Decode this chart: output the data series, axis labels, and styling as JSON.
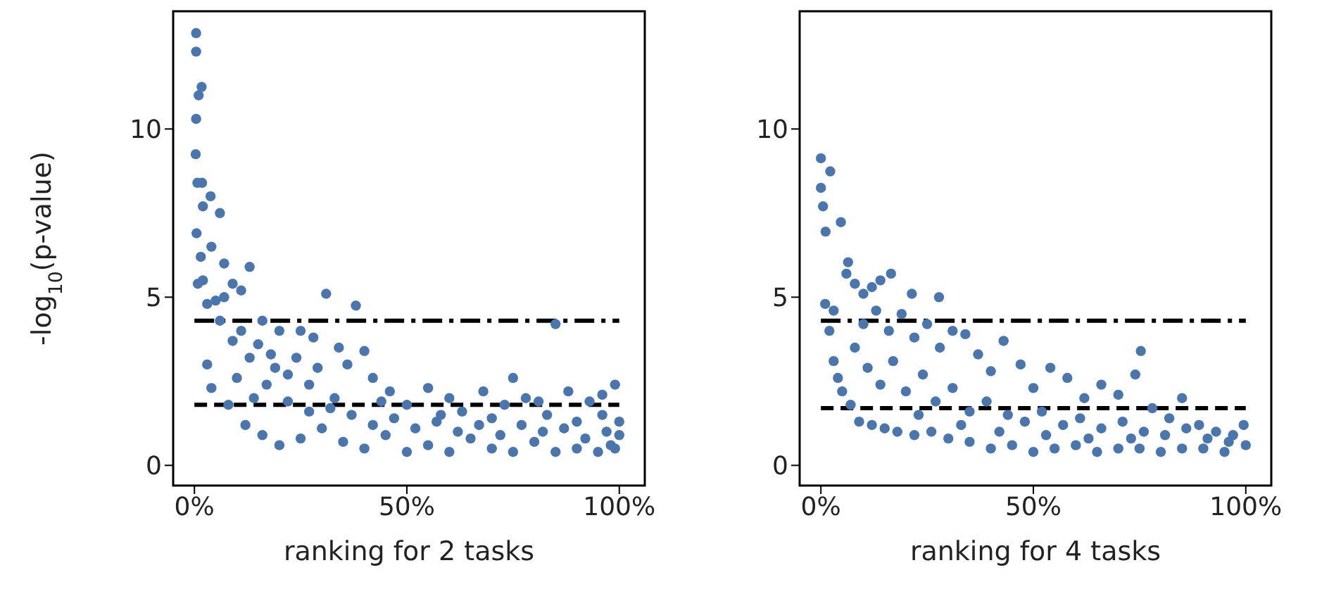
{
  "chart_data": [
    {
      "type": "scatter",
      "xlabel": "ranking for 2 tasks",
      "ylabel": "-log$_{10}$(p-value)",
      "xlim": [
        -5,
        106
      ],
      "ylim": [
        -0.6,
        13.5
      ],
      "xticks": [
        {
          "value": 0,
          "label": "0%"
        },
        {
          "value": 50,
          "label": "50%"
        },
        {
          "value": 100,
          "label": "100%"
        }
      ],
      "yticks": [
        0,
        5,
        10
      ],
      "marker": "circle",
      "ref_lines": [
        {
          "axis": "y",
          "value": 4.3,
          "color": "#000000",
          "line_style": "dashdot"
        },
        {
          "axis": "y",
          "value": 1.8,
          "color": "#000000",
          "line_style": "dashed"
        }
      ],
      "series": [
        {
          "color": "#4a76b0",
          "x": [
            0.4,
            0.4,
            1.7,
            1,
            0.4,
            0.3,
            0.7,
            1.8,
            3.8,
            6,
            2,
            0.5,
            1.5,
            4,
            7,
            2,
            0.8,
            9,
            13,
            11,
            5,
            16,
            20,
            31,
            38,
            25,
            28,
            34,
            40,
            3,
            4,
            10,
            8,
            14,
            18,
            22,
            27,
            33,
            36,
            42,
            46,
            50,
            55,
            60,
            63,
            70,
            75,
            81,
            85,
            78,
            88,
            93,
            99,
            96,
            90,
            12,
            16,
            20,
            25,
            30,
            35,
            40,
            45,
            50,
            55,
            60,
            65,
            70,
            75,
            80,
            85,
            90,
            95,
            99,
            100,
            97,
            92,
            87,
            82,
            77,
            72,
            67,
            62,
            57,
            52,
            47,
            42,
            37,
            32,
            27,
            22,
            17,
            13,
            9,
            6,
            3,
            7,
            11,
            15,
            19,
            24,
            29,
            44,
            58,
            68,
            73,
            83,
            96,
            100,
            98
          ],
          "values": [
            12.85,
            12.3,
            11.25,
            11.0,
            10.3,
            9.25,
            8.4,
            8.4,
            8.0,
            7.5,
            7.7,
            6.9,
            6.2,
            6.5,
            6.0,
            5.5,
            5.4,
            5.4,
            5.9,
            5.2,
            4.9,
            4.3,
            4.0,
            5.1,
            4.75,
            4.0,
            3.8,
            3.5,
            3.4,
            3.0,
            2.3,
            2.6,
            1.8,
            2.0,
            3.3,
            2.7,
            2.4,
            2.0,
            3.0,
            2.6,
            2.2,
            1.8,
            2.3,
            2.0,
            1.6,
            1.4,
            2.6,
            1.9,
            4.2,
            2.0,
            2.2,
            1.9,
            2.4,
            1.5,
            1.3,
            1.2,
            0.9,
            0.6,
            0.8,
            1.1,
            0.7,
            0.5,
            0.9,
            0.4,
            0.6,
            0.4,
            0.8,
            0.5,
            0.4,
            0.7,
            0.4,
            0.5,
            0.4,
            0.5,
            0.9,
            1.0,
            0.8,
            1.1,
            1.0,
            1.2,
            0.9,
            1.2,
            1.0,
            1.3,
            1.1,
            1.4,
            1.2,
            1.5,
            1.7,
            1.6,
            1.9,
            2.4,
            3.2,
            3.7,
            4.3,
            4.8,
            5.0,
            4.0,
            3.6,
            2.9,
            3.2,
            2.9,
            1.9,
            1.5,
            2.2,
            1.8,
            1.5,
            2.1,
            1.3,
            0.6
          ]
        }
      ]
    },
    {
      "type": "scatter",
      "xlabel": "ranking for 4 tasks",
      "xlim": [
        -5,
        106
      ],
      "ylim": [
        -0.6,
        13.5
      ],
      "xticks": [
        {
          "value": 0,
          "label": "0%"
        },
        {
          "value": 50,
          "label": "50%"
        },
        {
          "value": 100,
          "label": "100%"
        }
      ],
      "yticks": [
        0,
        5,
        10
      ],
      "marker": "circle",
      "ref_lines": [
        {
          "axis": "y",
          "value": 4.3,
          "color": "#000000",
          "line_style": "dashdot"
        },
        {
          "axis": "y",
          "value": 1.7,
          "color": "#000000",
          "line_style": "dashed"
        }
      ],
      "series": [
        {
          "color": "#4a76b0",
          "x": [
            0,
            2.2,
            0,
            0.5,
            4.7,
            1.1,
            6.4,
            6,
            8,
            10,
            12,
            14,
            16.5,
            21.4,
            27.8,
            1,
            3,
            2,
            3,
            4,
            5,
            7,
            9,
            12,
            15,
            18,
            22,
            26,
            30,
            35,
            40,
            45,
            50,
            55,
            60,
            65,
            70,
            75,
            80,
            85,
            90,
            95,
            100,
            99.5,
            97,
            93,
            89,
            85,
            82,
            78,
            74,
            75.3,
            70,
            66,
            62,
            58,
            54,
            50,
            47,
            43,
            40,
            37,
            34,
            31,
            28,
            25,
            22,
            19,
            16,
            13,
            10,
            8,
            11,
            14,
            17,
            20,
            24,
            27,
            31,
            35,
            39,
            44,
            48,
            52,
            57,
            61,
            66,
            71,
            76,
            81,
            86,
            91,
            96,
            33,
            42,
            53,
            63,
            73,
            23
          ],
          "values": [
            9.13,
            8.74,
            8.25,
            7.7,
            7.23,
            6.95,
            6.04,
            5.7,
            5.4,
            5.1,
            5.3,
            5.5,
            5.7,
            5.1,
            5.0,
            4.8,
            4.6,
            4.0,
            3.1,
            2.6,
            2.2,
            1.8,
            1.3,
            1.2,
            1.1,
            1.0,
            0.9,
            1.0,
            0.8,
            0.7,
            0.5,
            0.6,
            0.4,
            0.5,
            0.6,
            0.4,
            0.5,
            0.5,
            0.4,
            0.5,
            0.5,
            0.4,
            0.6,
            1.2,
            0.9,
            1.0,
            1.2,
            2.0,
            1.4,
            1.7,
            2.7,
            3.4,
            2.1,
            2.4,
            2.0,
            2.6,
            2.9,
            2.3,
            3.0,
            3.7,
            2.8,
            3.3,
            3.9,
            4.0,
            3.5,
            4.2,
            3.8,
            4.5,
            4.0,
            4.6,
            4.2,
            3.5,
            2.9,
            2.4,
            3.1,
            2.2,
            2.7,
            1.9,
            2.3,
            1.6,
            1.9,
            1.5,
            1.3,
            1.6,
            1.2,
            1.4,
            1.1,
            1.3,
            1.0,
            0.9,
            1.1,
            0.8,
            0.7,
            1.2,
            1.0,
            0.9,
            0.8,
            0.8,
            1.5
          ]
        }
      ]
    }
  ]
}
